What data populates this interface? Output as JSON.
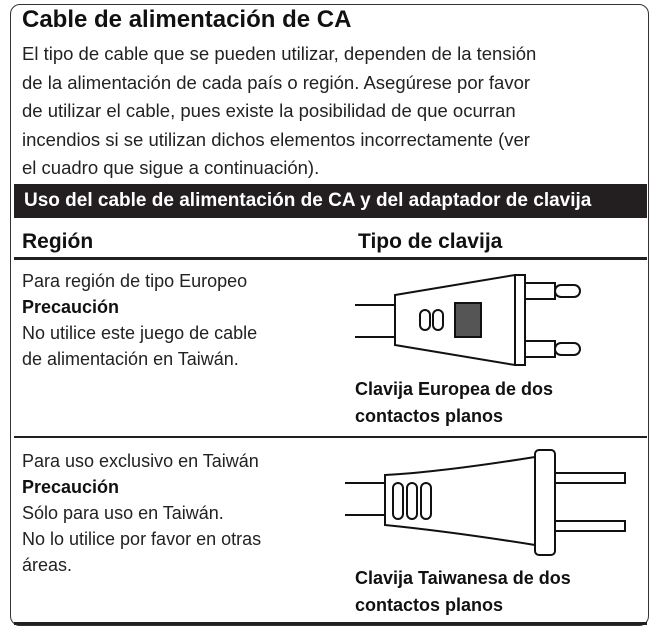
{
  "section": {
    "title": "Cable de alimentación de CA",
    "paragraph_lines": [
      "El tipo de cable que se pueden utilizar, dependen de la tensión",
      "de la alimentación de cada país o región. Asegúrese por favor",
      "de utilizar el cable, pues existe la posibilidad de que ocurran",
      "incendios si se utilizan dichos elementos incorrectamente (ver",
      "el cuadro que sigue a continuación)."
    ]
  },
  "table": {
    "caption": "Uso del cable de alimentación de CA y del adaptador de clavija",
    "headers": [
      "Región",
      "Tipo de clavija"
    ],
    "rows": [
      {
        "region": "Para región de tipo Europeo",
        "caution": "Precaución",
        "note_lines": [
          "No utilice este juego de cable",
          "de alimentación en Taiwán."
        ],
        "plug_lines": [
          "Clavija Europea de dos",
          "contactos planos"
        ]
      },
      {
        "region": "Para uso exclusivo en Taiwán",
        "caution": "Precaución",
        "note_lines": [
          "Sólo para uso en Taiwán.",
          "No lo utilice por favor en otras",
          "áreas."
        ],
        "plug_lines": [
          "Clavija Taiwanesa de dos",
          "contactos planos"
        ]
      }
    ]
  }
}
